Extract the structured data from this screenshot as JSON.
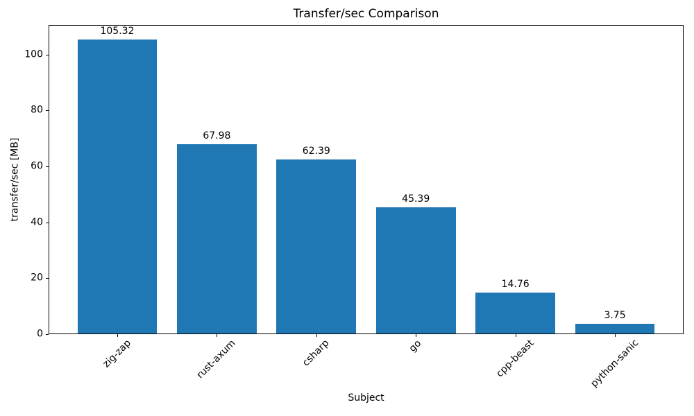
{
  "chart_data": {
    "type": "bar",
    "title": "Transfer/sec Comparison",
    "xlabel": "Subject",
    "ylabel": "transfer/sec [MB]",
    "categories": [
      "zig-zap",
      "rust-axum",
      "csharp",
      "go",
      "cpp-beast",
      "python-sanic"
    ],
    "values": [
      105.32,
      67.98,
      62.39,
      45.39,
      14.76,
      3.75
    ],
    "value_labels": [
      "105.32",
      "67.98",
      "62.39",
      "45.39",
      "14.76",
      "3.75"
    ],
    "bar_color": "#1f77b4",
    "ylim": [
      0,
      110.59
    ],
    "yticks": [
      0,
      20,
      40,
      60,
      80,
      100
    ],
    "bar_width_fraction": 0.8,
    "x_tick_rotation_deg": 45,
    "grid": false,
    "legend": "none"
  }
}
